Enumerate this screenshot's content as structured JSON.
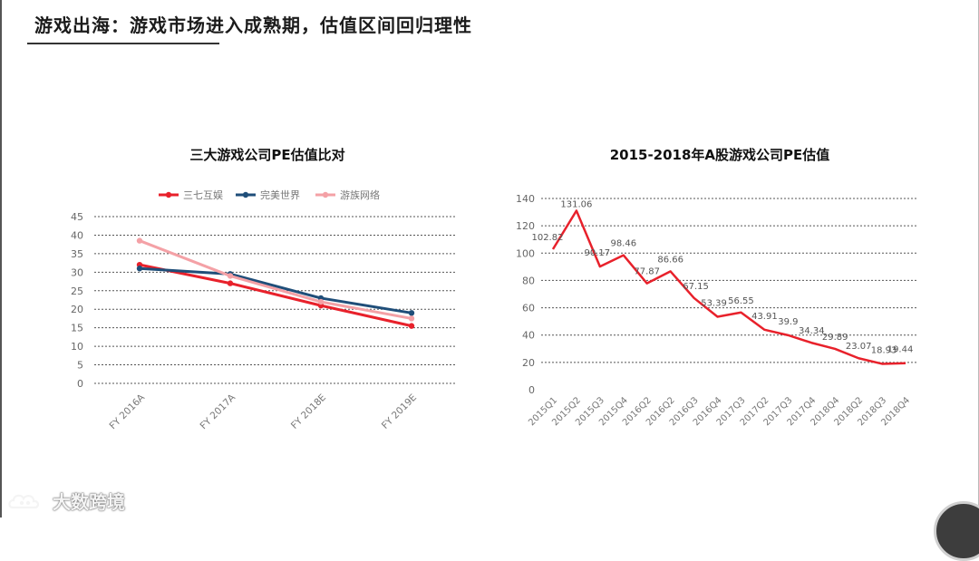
{
  "slide": {
    "title": "游戏出海：游戏市场进入成熟期，估值区间回归理性"
  },
  "watermark": {
    "text": "大数跨境",
    "logo_icon": "cloud-logo-icon"
  },
  "chart_data": [
    {
      "type": "line",
      "title": "三大游戏公司PE估值比对",
      "categories": [
        "FY 2016A",
        "FY 2017A",
        "FY 2018E",
        "FY 2019E"
      ],
      "ylim": [
        0,
        45
      ],
      "yticks": [
        0,
        5,
        10,
        15,
        20,
        25,
        30,
        35,
        40,
        45
      ],
      "grid": true,
      "legend_position": "top",
      "series": [
        {
          "name": "三七互娱",
          "color": "#e8212b",
          "values": [
            32,
            27,
            21,
            15.5
          ]
        },
        {
          "name": "完美世界",
          "color": "#1f4e79",
          "values": [
            31,
            29.5,
            23,
            19
          ]
        },
        {
          "name": "游族网络",
          "color": "#f4a1a6",
          "values": [
            38.5,
            29,
            22,
            17.5
          ]
        }
      ]
    },
    {
      "type": "line",
      "title": "2015-2018年A股游戏公司PE估值",
      "categories": [
        "2015Q1",
        "2015Q2",
        "2015Q3",
        "2015Q4",
        "2016Q2",
        "2016Q2",
        "2016Q3",
        "2016Q4",
        "2017Q3",
        "2017Q2",
        "2017Q3",
        "2017Q4",
        "2018Q4",
        "2018Q2",
        "2018Q3",
        "2018Q4"
      ],
      "ylim": [
        0,
        140
      ],
      "yticks": [
        0,
        20,
        40,
        60,
        80,
        100,
        120,
        140
      ],
      "grid": true,
      "series": [
        {
          "color": "#e8212b",
          "values": [
            102.82,
            131.06,
            90.17,
            98.46,
            77.87,
            86.66,
            67.15,
            53.39,
            56.55,
            43.91,
            39.9,
            34.34,
            29.89,
            23.07,
            18.93,
            19.44
          ],
          "data_labels": [
            "102.82",
            "131.06",
            "90.17",
            "98.46",
            "77.87",
            "86.66",
            "67.15",
            "53.39",
            "56.55",
            "43.91",
            "39.9",
            "34.34",
            "29.89",
            "23.07",
            "18.93",
            "19.44"
          ]
        }
      ]
    }
  ]
}
